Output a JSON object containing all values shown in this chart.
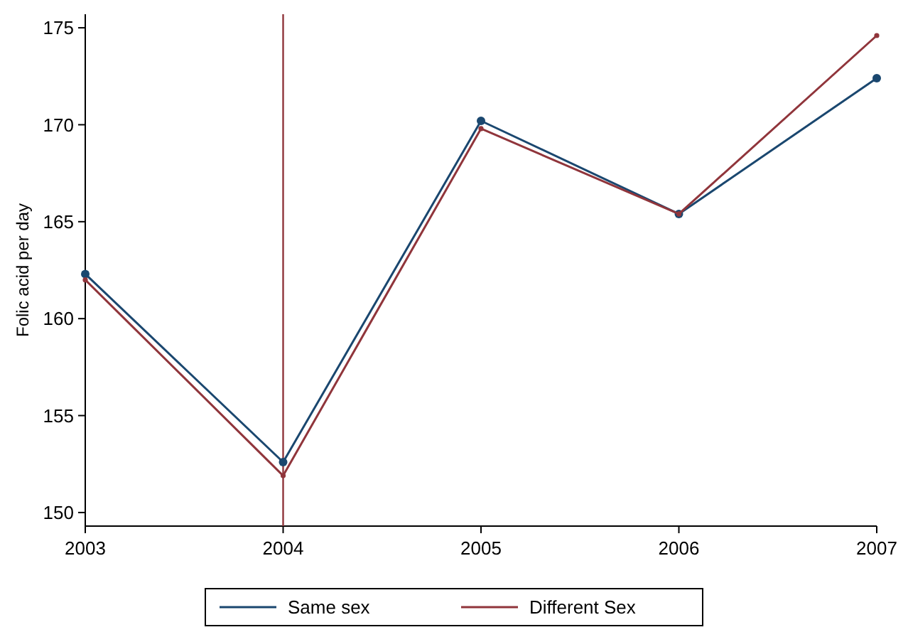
{
  "chart_data": {
    "type": "line",
    "ylabel": "Folic acid per day",
    "x": [
      2003,
      2004,
      2005,
      2006,
      2007
    ],
    "xlim": [
      2003,
      2007
    ],
    "xticks": [
      2003,
      2004,
      2005,
      2006,
      2007
    ],
    "ylim": [
      149.3,
      175.7
    ],
    "yticks": [
      150,
      155,
      160,
      165,
      170,
      175
    ],
    "series": [
      {
        "name": "Same sex",
        "color": "#1a476f",
        "values": [
          162.3,
          152.6,
          170.2,
          165.4,
          172.4
        ]
      },
      {
        "name": "Different Sex",
        "color": "#90353b",
        "values": [
          162.0,
          151.9,
          169.8,
          165.4,
          174.6
        ]
      }
    ],
    "ref_lines": [
      {
        "axis": "x",
        "value": 2004,
        "color": "#90353b"
      }
    ],
    "marker": "circle",
    "line_style": "solid",
    "grid": false,
    "legend": "bottom"
  }
}
